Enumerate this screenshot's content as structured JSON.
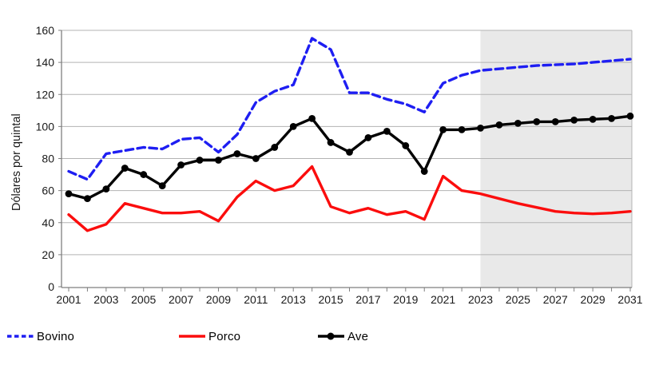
{
  "chart_data": {
    "type": "line",
    "title": "",
    "xlabel": "",
    "ylabel": "Dólares por quintal",
    "x": [
      2001,
      2002,
      2003,
      2004,
      2005,
      2006,
      2007,
      2008,
      2009,
      2010,
      2011,
      2012,
      2013,
      2014,
      2015,
      2016,
      2017,
      2018,
      2019,
      2020,
      2021,
      2022,
      2023,
      2024,
      2025,
      2026,
      2027,
      2028,
      2029,
      2030,
      2031
    ],
    "x_tick_labels": [
      "2001",
      "2003",
      "2005",
      "2007",
      "2009",
      "2011",
      "2013",
      "2015",
      "2017",
      "2019",
      "2021",
      "2023",
      "2025",
      "2027",
      "2029",
      "2031"
    ],
    "ylim": [
      0,
      160
    ],
    "y_ticks": [
      0,
      20,
      40,
      60,
      80,
      100,
      120,
      140,
      160
    ],
    "grid": true,
    "legend_position": "bottom",
    "forecast_region": {
      "start": 2023,
      "end": 2031,
      "fill": "#e9e9e9"
    },
    "colors": {
      "grid": "#b3b3b3",
      "axis": "#7f7f7f",
      "tick_text": "#1a1a1a"
    },
    "series": [
      {
        "name": "Bovino",
        "color": "#1e1ef2",
        "style": "dashed",
        "markers": false,
        "values": [
          72,
          67,
          83,
          85,
          87,
          86,
          92,
          93,
          84,
          95,
          115,
          122,
          126,
          155,
          148,
          121,
          121,
          117,
          114,
          109,
          127,
          132,
          135,
          136,
          137,
          138,
          138.5,
          139,
          140,
          141,
          142
        ]
      },
      {
        "name": "Porco",
        "color": "#fb0d0d",
        "style": "solid",
        "markers": false,
        "values": [
          45,
          35,
          39,
          52,
          49,
          46,
          46,
          47,
          41,
          56,
          66,
          60,
          63,
          75,
          50,
          46,
          49,
          45,
          47,
          42,
          69,
          60,
          58,
          55,
          52,
          49.5,
          47,
          46,
          45.5,
          46,
          47
        ]
      },
      {
        "name": "Ave",
        "color": "#000000",
        "style": "solid",
        "markers": true,
        "values": [
          58,
          55,
          61,
          74,
          70,
          63,
          76,
          79,
          79,
          83,
          80,
          87,
          100,
          105,
          90,
          84,
          93,
          97,
          88,
          72,
          98,
          98,
          99,
          101,
          102,
          103,
          103,
          104,
          104.5,
          105,
          106.5
        ]
      }
    ]
  }
}
